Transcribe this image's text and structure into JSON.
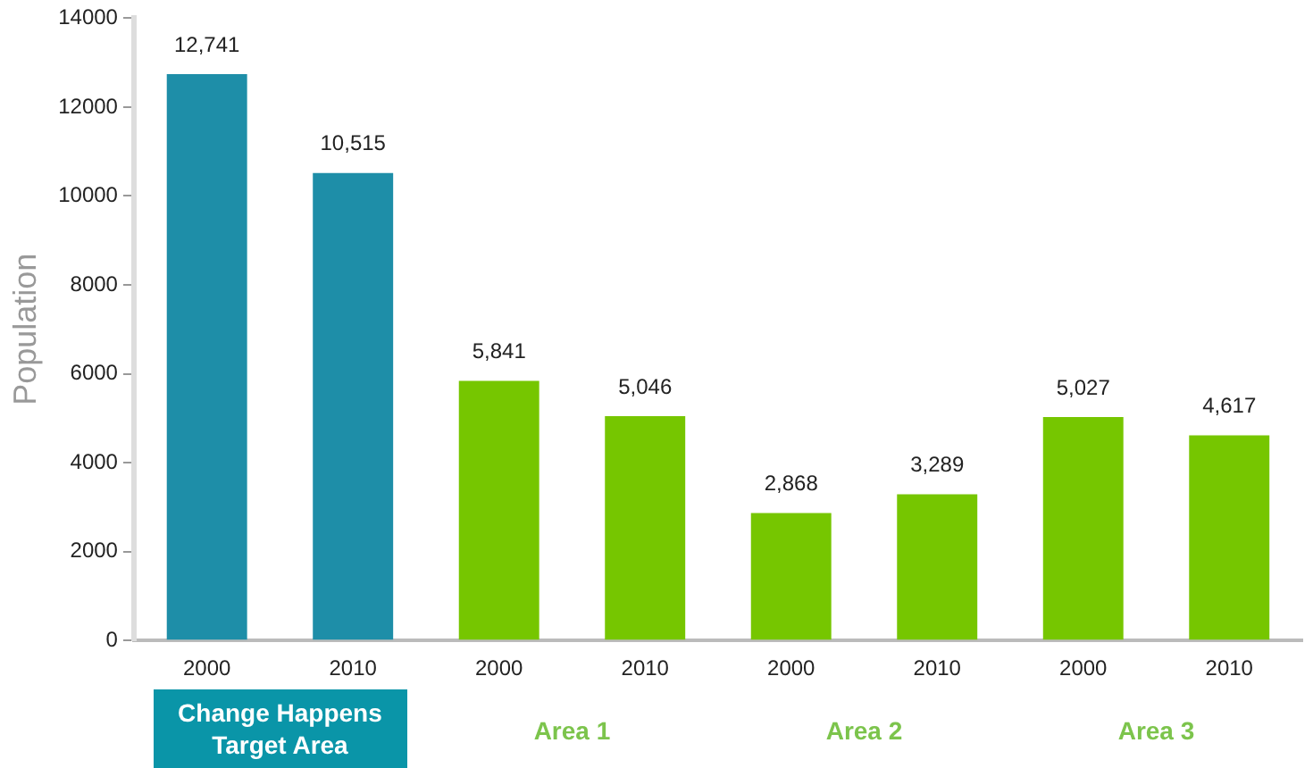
{
  "chart_data": {
    "type": "bar",
    "ylabel": "Population",
    "categories": [
      "2000",
      "2010",
      "2000",
      "2010",
      "2000",
      "2010",
      "2000",
      "2010"
    ],
    "values": [
      12741,
      10515,
      5841,
      5046,
      2868,
      3289,
      5027,
      4617
    ],
    "colors": [
      "#1e8ea8",
      "#1e8ea8",
      "#76c600",
      "#76c600",
      "#76c600",
      "#76c600",
      "#76c600",
      "#76c600"
    ],
    "value_labels": [
      "12,741",
      "10,515",
      "5,841",
      "5,046",
      "2,868",
      "3,289",
      "5,027",
      "4,617"
    ],
    "ylim": [
      0,
      14000
    ],
    "yticks": [
      0,
      2000,
      4000,
      6000,
      8000,
      10000,
      12000,
      14000
    ],
    "annotations": [
      "Change Happens Target Area",
      "Area 1",
      "Area 2",
      "Area 3"
    ],
    "grid": false,
    "legend": false
  }
}
